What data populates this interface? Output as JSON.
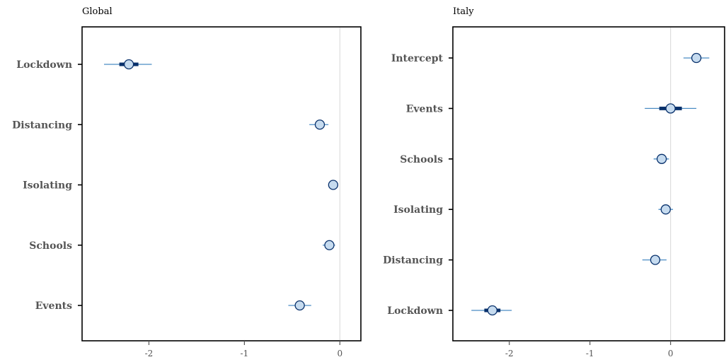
{
  "chart_data": [
    {
      "type": "forest",
      "title": "Global",
      "xlabel": "",
      "ylabel": "",
      "xlim": [
        -2.7,
        0.22
      ],
      "xticks": [
        -2,
        -1,
        0
      ],
      "xtick_labels": [
        "-2",
        "-1",
        "0"
      ],
      "reference_line": 0,
      "categories": [
        "Lockdown",
        "Distancing",
        "Isolating",
        "Schools",
        "Events"
      ],
      "estimates": [
        {
          "label": "Lockdown",
          "mean": -2.21,
          "inner": [
            -2.31,
            -2.11
          ],
          "outer": [
            -2.47,
            -1.97
          ]
        },
        {
          "label": "Distancing",
          "mean": -0.21,
          "inner": [
            -0.24,
            -0.18
          ],
          "outer": [
            -0.32,
            -0.12
          ]
        },
        {
          "label": "Isolating",
          "mean": -0.07,
          "inner": [
            -0.09,
            -0.05
          ],
          "outer": [
            -0.12,
            -0.02
          ]
        },
        {
          "label": "Schools",
          "mean": -0.11,
          "inner": [
            -0.13,
            -0.09
          ],
          "outer": [
            -0.18,
            -0.05
          ]
        },
        {
          "label": "Events",
          "mean": -0.42,
          "inner": [
            -0.46,
            -0.38
          ],
          "outer": [
            -0.54,
            -0.3
          ]
        }
      ]
    },
    {
      "type": "forest",
      "title": "Italy",
      "xlabel": "",
      "ylabel": "",
      "xlim": [
        -2.7,
        0.67
      ],
      "xticks": [
        -2,
        -1,
        0
      ],
      "xtick_labels": [
        "-2",
        "-1",
        "0"
      ],
      "reference_line": 0,
      "categories": [
        "Intercept",
        "Events",
        "Schools",
        "Isolating",
        "Distancing",
        "Lockdown"
      ],
      "estimates": [
        {
          "label": "Intercept",
          "mean": 0.32,
          "inner": [
            0.28,
            0.36
          ],
          "outer": [
            0.16,
            0.48
          ]
        },
        {
          "label": "Events",
          "mean": 0.0,
          "inner": [
            -0.14,
            0.14
          ],
          "outer": [
            -0.32,
            0.32
          ]
        },
        {
          "label": "Schools",
          "mean": -0.11,
          "inner": [
            -0.14,
            -0.08
          ],
          "outer": [
            -0.21,
            -0.02
          ]
        },
        {
          "label": "Isolating",
          "mean": -0.06,
          "inner": [
            -0.09,
            -0.03
          ],
          "outer": [
            -0.15,
            0.03
          ]
        },
        {
          "label": "Distancing",
          "mean": -0.19,
          "inner": [
            -0.24,
            -0.14
          ],
          "outer": [
            -0.35,
            -0.05
          ]
        },
        {
          "label": "Lockdown",
          "mean": -2.21,
          "inner": [
            -2.31,
            -2.11
          ],
          "outer": [
            -2.47,
            -1.97
          ]
        }
      ]
    }
  ],
  "colors": {
    "point_fill": "#c6dbef",
    "point_stroke": "#08306b",
    "inner_interval": "#08306b",
    "outer_interval": "#4a8cc4",
    "reference_line": "#dddddd",
    "axis_label": "#555555"
  }
}
